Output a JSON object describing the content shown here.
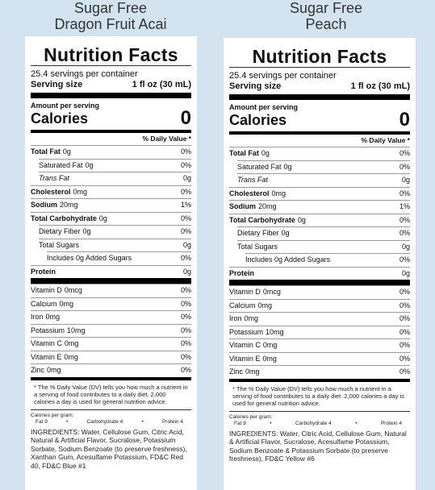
{
  "labels": [
    {
      "heading": [
        "Sugar Free",
        "Dragon Fruit Acai"
      ],
      "title": "Nutrition Facts",
      "servings": "25.4 servings per container",
      "serving_size_label": "Serving size",
      "serving_size": "1 fl oz (30 mL)",
      "amount_per_serving": "Amount per serving",
      "calories_label": "Calories",
      "calories": "0",
      "dv_header": "% Daily Value *",
      "nutrients": [
        {
          "name": "Total Fat",
          "amount": "0g",
          "dv": "0%"
        },
        {
          "name": "Saturated Fat",
          "amount": "0g",
          "dv": "0%"
        },
        {
          "name": "Trans Fat",
          "amount": "0g"
        },
        {
          "name": "Cholesterol",
          "amount": "0mg",
          "dv": "0%"
        },
        {
          "name": "Sodium",
          "amount": "20mg",
          "dv": "1%"
        },
        {
          "name": "Total Carbohydrate",
          "amount": "0g",
          "dv": "0%"
        },
        {
          "name": "Dietary Fiber",
          "amount": "0g",
          "dv": "0%"
        },
        {
          "name": "Total Sugars",
          "amount": "0g"
        },
        {
          "name": "Includes 0g Added Sugars",
          "dv": "0%"
        },
        {
          "name": "Protein",
          "amount": "0g"
        }
      ],
      "vitamins": [
        {
          "name": "Vitamin D",
          "amount": "0mcg",
          "dv": "0%"
        },
        {
          "name": "Calcium",
          "amount": "0mg",
          "dv": "0%"
        },
        {
          "name": "Iron",
          "amount": "0mg",
          "dv": "0%"
        },
        {
          "name": "Potassium",
          "amount": "10mg",
          "dv": "0%"
        },
        {
          "name": "Vitamin C",
          "amount": "0mg",
          "dv": "0%"
        },
        {
          "name": "Vitamin E",
          "amount": "0mg",
          "dv": "0%"
        },
        {
          "name": "Zinc",
          "amount": "0mg",
          "dv": "0%"
        }
      ],
      "footnote": "* The % Daily Value (DV) tells you how much a nutrient in a serving of food contributes to a daily diet. 2,000 calories a day is used for general nutrition advice.",
      "calories_per_gram": "Calories per gram:",
      "per_gram": [
        "Fat 9",
        "•",
        "Carbohydrate 4",
        "•",
        "Protein 4"
      ],
      "ingredients": "INGREDIENTS: Water, Cellulose Gum, Citric Acid, Natural & Artificial Flavor, Sucralose, Potassium Sorbate, Sodium Benzoate (to preserve freshness), Xanthan Gum, Acesulfame Potassium, FD&C Red 40, FD&C Blue #1"
    },
    {
      "heading": [
        "Sugar Free",
        "Peach"
      ],
      "title": "Nutrition Facts",
      "servings": "25.4 servings per container",
      "serving_size_label": "Serving size",
      "serving_size": "1 fl oz (30 mL)",
      "amount_per_serving": "Amount per serving",
      "calories_label": "Calories",
      "calories": "0",
      "dv_header": "% Daily Value *",
      "nutrients": [
        {
          "name": "Total Fat",
          "amount": "0g",
          "dv": "0%"
        },
        {
          "name": "Saturated Fat",
          "amount": "0g",
          "dv": "0%"
        },
        {
          "name": "Trans Fat",
          "amount": "0g"
        },
        {
          "name": "Cholesterol",
          "amount": "0mg",
          "dv": "0%"
        },
        {
          "name": "Sodium",
          "amount": "20mg",
          "dv": "1%"
        },
        {
          "name": "Total Carbohydrate",
          "amount": "0g",
          "dv": "0%"
        },
        {
          "name": "Dietary Fiber",
          "amount": "0g",
          "dv": "0%"
        },
        {
          "name": "Total Sugars",
          "amount": "0g"
        },
        {
          "name": "Includes 0g Added Sugars",
          "dv": "0%"
        },
        {
          "name": "Protein",
          "amount": "0g"
        }
      ],
      "vitamins": [
        {
          "name": "Vitamin D",
          "amount": "0mcg",
          "dv": "0%"
        },
        {
          "name": "Calcium",
          "amount": "0mg",
          "dv": "0%"
        },
        {
          "name": "Iron",
          "amount": "0mg",
          "dv": "0%"
        },
        {
          "name": "Potassium",
          "amount": "10mg",
          "dv": "0%"
        },
        {
          "name": "Vitamin C",
          "amount": "0mg",
          "dv": "0%"
        },
        {
          "name": "Vitamin E",
          "amount": "0mg",
          "dv": "0%"
        },
        {
          "name": "Zinc",
          "amount": "0mg",
          "dv": "0%"
        }
      ],
      "footnote": "* The % Daily Value (DV) tells you how much a nutrient in a serving of food contributes to a daily diet. 2,000 calories a day is used for general nutrition advice.",
      "calories_per_gram": "Calories per gram:",
      "per_gram": [
        "Fat 9",
        "•",
        "Carbohydrate 4",
        "•",
        "Protein 4"
      ],
      "ingredients": "INGREDIENTS: Water, Citric Acid, Cellulose Gum, Natural & Artificial Flavor, Sucralose, Acesulfame Potassium, Sodium Benzoate & Potassium Sorbate (to preserve freshness), FD&C Yellow #6"
    }
  ]
}
